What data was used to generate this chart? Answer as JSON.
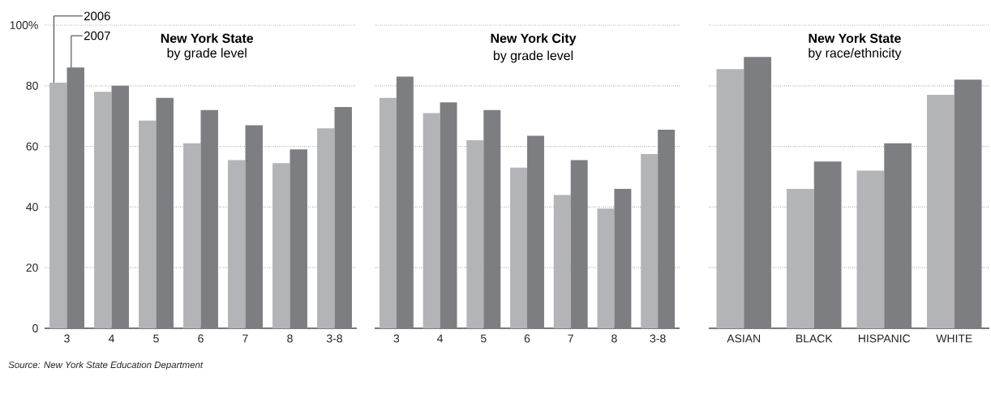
{
  "chart_data": [
    {
      "type": "bar",
      "title": "New York State",
      "subtitle": "by grade level",
      "categories": [
        "3",
        "4",
        "5",
        "6",
        "7",
        "8",
        "3-8"
      ],
      "series": [
        {
          "name": "2006",
          "color": "#b3b4b8",
          "values": [
            81,
            78,
            68.5,
            61,
            55.5,
            54.5,
            66
          ]
        },
        {
          "name": "2007",
          "color": "#7d7e82",
          "values": [
            86,
            80,
            76,
            72,
            67,
            59,
            73
          ]
        }
      ],
      "ylim": [
        0,
        100
      ],
      "yticks": [
        0,
        20,
        40,
        60,
        80,
        {
          "value": 100,
          "label": "100%"
        }
      ],
      "grid": "y",
      "annotations": [
        "Source: New York State Education Department"
      ]
    },
    {
      "type": "bar",
      "title": "New York City",
      "subtitle": "by grade level",
      "categories": [
        "3",
        "4",
        "5",
        "6",
        "7",
        "8",
        "3-8"
      ],
      "series": [
        {
          "color": "#b3b4b8",
          "values": [
            76,
            71,
            62,
            53,
            44,
            39.5,
            57.5
          ]
        },
        {
          "color": "#7d7e82",
          "values": [
            83,
            74.5,
            72,
            63.5,
            55.5,
            46,
            65.5
          ]
        }
      ],
      "ylim": [
        0,
        100
      ],
      "yticks": [
        0,
        20,
        40,
        60,
        80,
        100
      ],
      "grid": "y",
      "tick_labels": "x"
    },
    {
      "type": "bar",
      "title": "New York State",
      "subtitle": "by race/ethnicity",
      "categories": [
        "ASIAN",
        "BLACK",
        "HISPANIC",
        "WHITE"
      ],
      "series": [
        {
          "color": "#b3b4b8",
          "values": [
            85.5,
            46,
            52,
            77
          ]
        },
        {
          "color": "#7d7e82",
          "values": [
            89.5,
            55,
            61,
            82
          ]
        }
      ],
      "ylim": [
        0,
        100
      ],
      "yticks": [
        0,
        20,
        40,
        60,
        80,
        100
      ],
      "grid": "y",
      "tick_labels": "x"
    }
  ]
}
